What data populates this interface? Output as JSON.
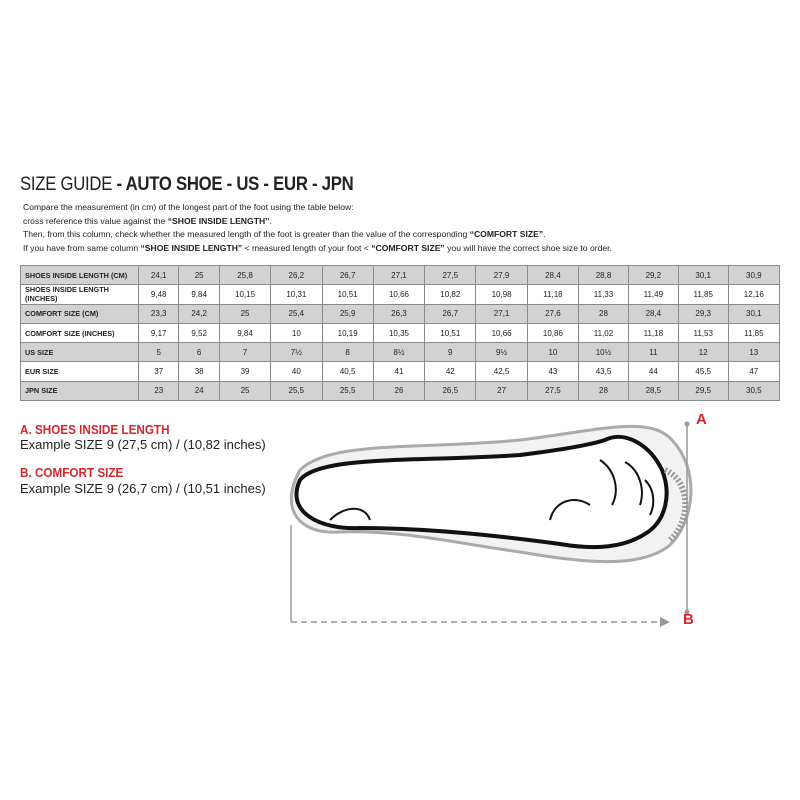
{
  "title": {
    "prefix": "SIZE GUIDE",
    "bold": " - AUTO SHOE - US - EUR - JPN"
  },
  "intro": {
    "line1": "Compare the measurement (in cm) of the longest part of the foot using the table below:",
    "line2_pre": "cross reference this value against the ",
    "line2_bold": "“SHOE INSIDE LENGTH”",
    "line2_post": ".",
    "line3_pre": "Then, from this column, check whether the measured length of the foot is greater than the value of the corresponding ",
    "line3_bold": "“COMFORT SIZE”",
    "line3_post": ".",
    "line4_pre": "If you have from same column ",
    "line4_bold1": "“SHOE INSIDE LENGTH”",
    "line4_mid": " <  measured length of your foot  < ",
    "line4_bold2": "“COMFORT SIZE”",
    "line4_post": " you will have the correct shoe size to order."
  },
  "table": {
    "rows": [
      {
        "label": "SHOES INSIDE LENGTH (CM)",
        "values": [
          "24,1",
          "25",
          "25,8",
          "26,2",
          "26,7",
          "27,1",
          "27,5",
          "27,9",
          "28,4",
          "28,8",
          "29,2",
          "30,1",
          "30,9"
        ]
      },
      {
        "label": "SHOES INSIDE LENGTH (INCHES)",
        "values": [
          "9,48",
          "9,84",
          "10,15",
          "10,31",
          "10,51",
          "10,66",
          "10,82",
          "10,98",
          "11,18",
          "11,33",
          "11,49",
          "11,85",
          "12,16"
        ]
      },
      {
        "label": "COMFORT SIZE (CM)",
        "values": [
          "23,3",
          "24,2",
          "25",
          "25,4",
          "25,9",
          "26,3",
          "26,7",
          "27,1",
          "27,6",
          "28",
          "28,4",
          "29,3",
          "30,1"
        ]
      },
      {
        "label": "COMFORT SIZE (INCHES)",
        "values": [
          "9,17",
          "9,52",
          "9,84",
          "10",
          "10,19",
          "10,35",
          "10,51",
          "10,66",
          "10,86",
          "11,02",
          "11,18",
          "11,53",
          "11,85"
        ]
      },
      {
        "label": "US SIZE",
        "values": [
          "5",
          "6",
          "7",
          "7½",
          "8",
          "8½",
          "9",
          "9½",
          "10",
          "10½",
          "11",
          "12",
          "13"
        ]
      },
      {
        "label": "EUR SIZE",
        "values": [
          "37",
          "38",
          "39",
          "40",
          "40,5",
          "41",
          "42",
          "42,5",
          "43",
          "43,5",
          "44",
          "45,5",
          "47"
        ]
      },
      {
        "label": "JPN SIZE",
        "values": [
          "23",
          "24",
          "25",
          "25,5",
          "25,5",
          "26",
          "26,5",
          "27",
          "27,5",
          "28",
          "28,5",
          "29,5",
          "30,5"
        ]
      }
    ]
  },
  "legend": {
    "a_title": "A. SHOES INSIDE LENGTH",
    "a_example": "Example SIZE 9 (27,5 cm) / (10,82 inches)",
    "b_title": "B. COMFORT SIZE",
    "b_example": "Example SIZE 9 (26,7 cm) / (10,51 inches)"
  },
  "diagram": {
    "marker_a": "A",
    "marker_b": "B",
    "accent": "#d4272e"
  }
}
